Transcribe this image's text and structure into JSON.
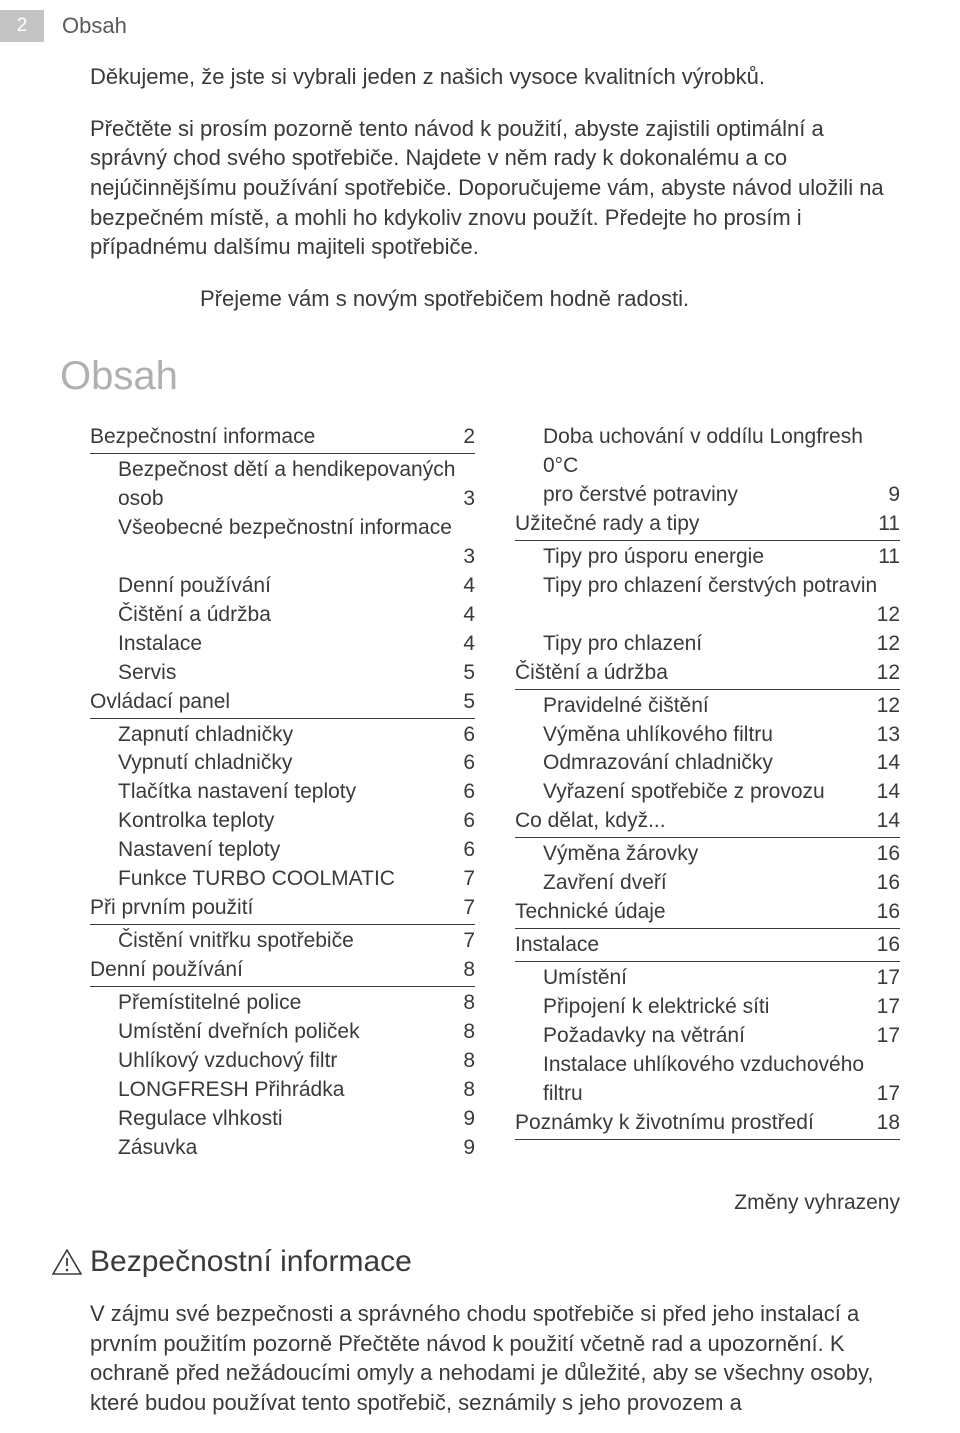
{
  "header": {
    "page_number": "2",
    "title": "Obsah"
  },
  "intro": {
    "p1": "Děkujeme, že jste si vybrali jeden z našich vysoce kvalitních výrobků.",
    "p2": "Přečtěte si prosím pozorně tento návod k použití, abyste zajistili optimální a správný chod svého spotřebiče. Najdete v něm rady k dokonalému a co nejúčinnějšímu používání spotřebiče. Doporučujeme vám, abyste návod uložili na bezpečném místě, a mohli ho kdykoliv znovu použít. Předejte ho prosím i případnému dalšímu majiteli spotřebiče.",
    "wish": "Přejeme vám s novým spotřebičem hodně radosti."
  },
  "toc": {
    "heading": "Obsah",
    "left": [
      {
        "type": "section",
        "label": "Bezpečnostní informace",
        "page": "2"
      },
      {
        "type": "wrap",
        "line1": "Bezpečnost dětí a hendikepovaných",
        "line2": "osob",
        "page": "3"
      },
      {
        "type": "wrap",
        "line1": "Všeobecné bezpečnostní informace",
        "line2": "",
        "page": "3"
      },
      {
        "type": "item",
        "label": "Denní používání",
        "page": "4"
      },
      {
        "type": "item",
        "label": "Čištění a údržba",
        "page": "4"
      },
      {
        "type": "item",
        "label": "Instalace",
        "page": "4"
      },
      {
        "type": "item",
        "label": "Servis",
        "page": "5"
      },
      {
        "type": "section",
        "label": "Ovládací panel",
        "page": "5"
      },
      {
        "type": "item",
        "label": "Zapnutí chladničky",
        "page": "6"
      },
      {
        "type": "item",
        "label": "Vypnutí chladničky",
        "page": "6"
      },
      {
        "type": "item",
        "label": "Tlačítka nastavení teploty",
        "page": "6"
      },
      {
        "type": "item",
        "label": "Kontrolka teploty",
        "page": "6"
      },
      {
        "type": "item",
        "label": "Nastavení teploty",
        "page": "6"
      },
      {
        "type": "item",
        "label": "Funkce TURBO COOLMATIC",
        "page": "7"
      },
      {
        "type": "section",
        "label": "Při prvním použití",
        "page": "7"
      },
      {
        "type": "item",
        "label": "Čistění vnitřku spotřebiče",
        "page": "7"
      },
      {
        "type": "section",
        "label": "Denní používání",
        "page": "8"
      },
      {
        "type": "item",
        "label": "Přemístitelné police",
        "page": "8"
      },
      {
        "type": "item",
        "label": "Umístění dveřních poliček",
        "page": "8"
      },
      {
        "type": "item",
        "label": "Uhlíkový vzduchový filtr",
        "page": "8"
      },
      {
        "type": "item",
        "label": "LONGFRESH Přihrádka",
        "page": "8"
      },
      {
        "type": "item",
        "label": "Regulace vlhkosti",
        "page": "9"
      },
      {
        "type": "item",
        "label": "Zásuvka",
        "page": "9"
      }
    ],
    "right": [
      {
        "type": "wrap",
        "line1": "Doba uchování v oddílu Longfresh 0°C",
        "line2": "pro čerstvé potraviny",
        "page": "9"
      },
      {
        "type": "section",
        "label": "Užitečné rady a tipy",
        "page": "11"
      },
      {
        "type": "item",
        "label": "Tipy pro úsporu energie",
        "page": "11"
      },
      {
        "type": "wrap",
        "line1": "Tipy pro chlazení čerstvých potravin",
        "line2": "",
        "page": "12"
      },
      {
        "type": "item",
        "label": "Tipy pro chlazení",
        "page": "12"
      },
      {
        "type": "section",
        "label": "Čištění a údržba",
        "page": "12"
      },
      {
        "type": "item",
        "label": "Pravidelné čištění",
        "page": "12"
      },
      {
        "type": "item",
        "label": "Výměna uhlíkového filtru",
        "page": "13"
      },
      {
        "type": "item",
        "label": "Odmrazování chladničky",
        "page": "14"
      },
      {
        "type": "item",
        "label": "Vyřazení spotřebiče z provozu",
        "page": "14"
      },
      {
        "type": "section",
        "label": "Co dělat, když...",
        "page": "14"
      },
      {
        "type": "item",
        "label": "Výměna žárovky",
        "page": "16"
      },
      {
        "type": "item",
        "label": "Zavření dveří",
        "page": "16"
      },
      {
        "type": "section",
        "label": "Technické údaje",
        "page": "16"
      },
      {
        "type": "section",
        "label": "Instalace",
        "page": "16"
      },
      {
        "type": "item",
        "label": "Umístění",
        "page": "17"
      },
      {
        "type": "item",
        "label": "Připojení k elektrické síti",
        "page": "17"
      },
      {
        "type": "item",
        "label": "Požadavky na větrání",
        "page": "17"
      },
      {
        "type": "wrap",
        "line1": "Instalace uhlíkového vzduchového",
        "line2": "filtru",
        "page": "17"
      },
      {
        "type": "section",
        "label": "Poznámky k životnímu prostředí",
        "page": "18"
      }
    ],
    "reserved": "Změny vyhrazeny"
  },
  "safety": {
    "heading": "Bezpečnostní informace",
    "body": "V zájmu své bezpečnosti a správného chodu spotřebiče si před jeho instalací a prvním použitím pozorně Přečtěte návod k použití včetně rad a upozornění. K ochraně před nežádoucími omyly a nehodami je důležité, aby se všechny osoby, které budou používat tento spotřebič, seznámily s jeho provozem a"
  }
}
